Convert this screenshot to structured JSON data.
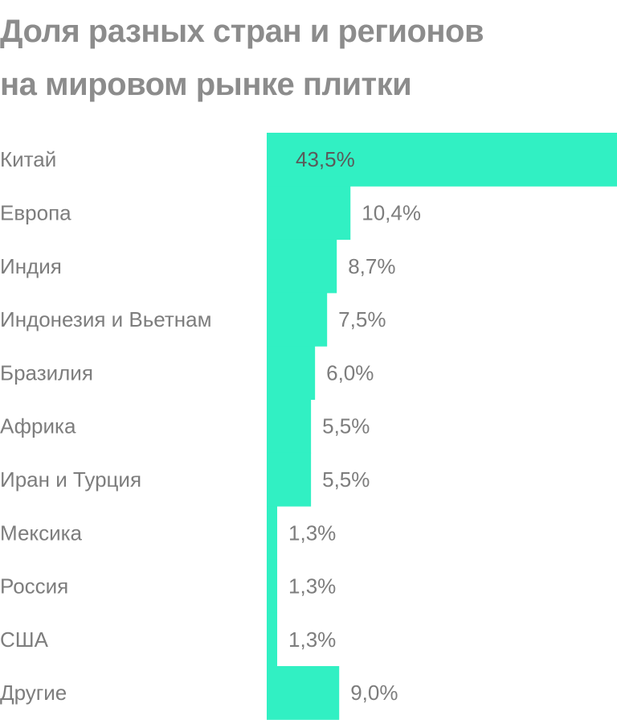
{
  "title": {
    "line1": "Доля разных стран и регионов",
    "line2": "на мировом рынке плитки"
  },
  "chart_data": {
    "type": "bar",
    "orientation": "horizontal",
    "title": "Доля разных стран и регионов на мировом рынке плитки",
    "categories": [
      "Китай",
      "Европа",
      "Индия",
      "Индонезия и Вьетнам",
      "Бразилия",
      "Африка",
      "Иран и Турция",
      "Мексика",
      "Россия",
      "США",
      "Другие"
    ],
    "values": [
      43.5,
      10.4,
      8.7,
      7.5,
      6.0,
      5.5,
      5.5,
      1.3,
      1.3,
      1.3,
      9.0
    ],
    "value_labels": [
      "43,5%",
      "10,4%",
      "8,7%",
      "7,5%",
      "6,0%",
      "5,5%",
      "5,5%",
      "1,3%",
      "1,3%",
      "1,3%",
      "9,0%"
    ],
    "unit": "%",
    "bar_color": "#31f0c3",
    "grid": false,
    "legend": "none"
  }
}
